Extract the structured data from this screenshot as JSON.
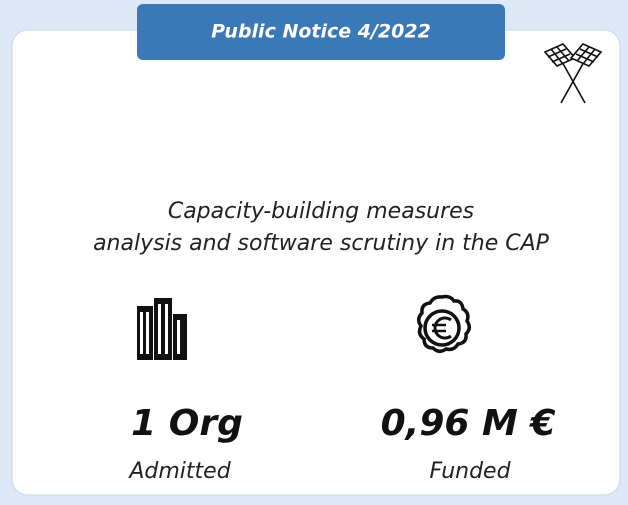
{
  "header": {
    "title": "Public Notice 4/2022"
  },
  "description": [
    "Capacity-building measures",
    "analysis and software scrutiny in the CAP"
  ],
  "stats": [
    {
      "value": "1 Org",
      "label": "Admitted"
    },
    {
      "value": "0,96 M €",
      "label": "Funded"
    }
  ]
}
